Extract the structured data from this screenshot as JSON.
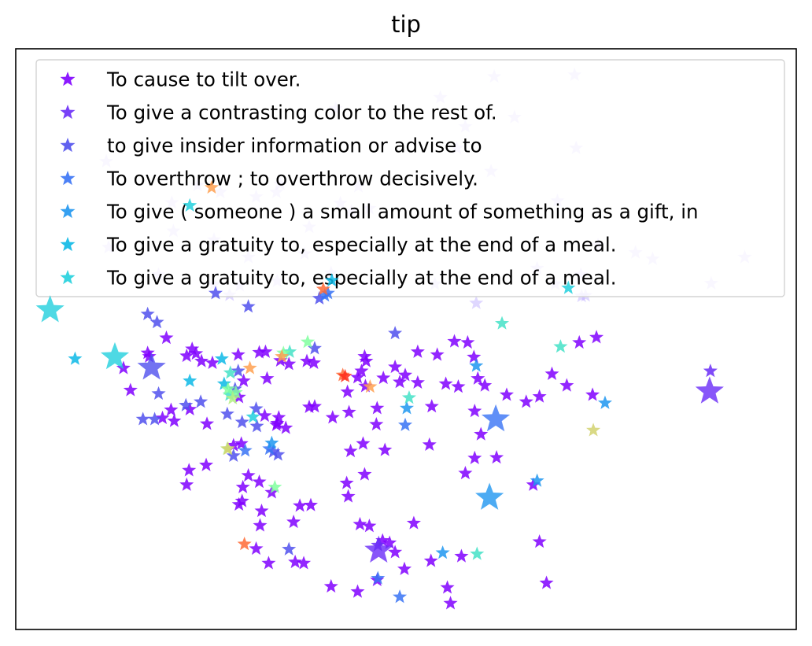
{
  "chart_data": {
    "type": "scatter",
    "title": "tip",
    "xlabel": "",
    "ylabel": "",
    "grid": false,
    "axis_ticks": false,
    "marker": "star",
    "xlim": [
      0,
      100
    ],
    "ylim": [
      0,
      100
    ],
    "legend": {
      "placement": "top",
      "entries": [
        {
          "label": "To cause to tilt over.",
          "color": "#8000ff"
        },
        {
          "label": "To give a contrasting color to the rest of.",
          "color": "#6a2cf7"
        },
        {
          "label": "to give insider information or advise to",
          "color": "#5050ed"
        },
        {
          "label": "To overthrow ; to overthrow decisively.",
          "color": "#3873f5"
        },
        {
          "label": "To give ( someone ) a small amount of something as a gift, in",
          "color": "#1f96f0"
        },
        {
          "label": "To give a gratuity to, especially at the end of a meal.",
          "color": "#0cb8e6"
        },
        {
          "label": "To give a gratuity to, especially at the end of a meal.",
          "color": "#22d0dd"
        }
      ]
    },
    "series": [
      {
        "color": "#8000ff",
        "alpha": 0.85,
        "size": "small",
        "points": [
          [
            28.5,
            47.3
          ],
          [
            31.2,
            47.7
          ],
          [
            32.0,
            47.8
          ],
          [
            33.9,
            46.3
          ],
          [
            37.3,
            46.2
          ],
          [
            44.7,
            47.0
          ],
          [
            44.9,
            46.2
          ],
          [
            51.5,
            47.8
          ],
          [
            54.0,
            47.3
          ],
          [
            57.9,
            49.4
          ],
          [
            58.7,
            46.9
          ],
          [
            56.2,
            49.6
          ],
          [
            19.3,
            50.2
          ],
          [
            16.9,
            47.6
          ],
          [
            17.1,
            47.0
          ],
          [
            13.8,
            45.0
          ],
          [
            21.9,
            47.1
          ],
          [
            22.6,
            48.3
          ],
          [
            23.1,
            47.5
          ],
          [
            23.8,
            46.2
          ],
          [
            14.7,
            41.2
          ],
          [
            18.8,
            36.4
          ],
          [
            19.9,
            37.8
          ],
          [
            22.3,
            37.9
          ],
          [
            20.3,
            35.9
          ],
          [
            24.5,
            35.4
          ],
          [
            27.9,
            31.7
          ],
          [
            28.9,
            32.0
          ],
          [
            31.9,
            36.8
          ],
          [
            33.4,
            35.2
          ],
          [
            33.7,
            36.5
          ],
          [
            33.5,
            35.5
          ],
          [
            34.6,
            34.7
          ],
          [
            37.6,
            38.3
          ],
          [
            38.3,
            38.4
          ],
          [
            40.6,
            36.5
          ],
          [
            42.5,
            40.9
          ],
          [
            42.7,
            37.4
          ],
          [
            43.8,
            43.4
          ],
          [
            46.3,
            38.1
          ],
          [
            47.1,
            43.3
          ],
          [
            48.6,
            45.2
          ],
          [
            49.9,
            43.8
          ],
          [
            49.2,
            42.6
          ],
          [
            51.5,
            42.5
          ],
          [
            53.3,
            38.4
          ],
          [
            55.1,
            42.3
          ],
          [
            56.7,
            41.8
          ],
          [
            58.8,
            37.6
          ],
          [
            60.1,
            42.0
          ],
          [
            59.2,
            43.2
          ],
          [
            62.9,
            40.4
          ],
          [
            65.4,
            39.2
          ],
          [
            67.1,
            40.1
          ],
          [
            70.6,
            42.0
          ],
          [
            73.9,
            40.4
          ],
          [
            68.7,
            44.0
          ],
          [
            74.4,
            50.3
          ],
          [
            72.2,
            49.4
          ],
          [
            59.6,
            33.6
          ],
          [
            58.8,
            29.5
          ],
          [
            57.6,
            26.9
          ],
          [
            53.0,
            31.8
          ],
          [
            47.3,
            30.9
          ],
          [
            42.9,
            30.7
          ],
          [
            42.4,
            25.2
          ],
          [
            42.6,
            22.9
          ],
          [
            36.4,
            21.3
          ],
          [
            35.6,
            18.5
          ],
          [
            32.8,
            23.6
          ],
          [
            29.8,
            26.5
          ],
          [
            29.0,
            22.1
          ],
          [
            28.6,
            21.5
          ],
          [
            24.4,
            28.3
          ],
          [
            22.2,
            27.4
          ],
          [
            21.9,
            24.9
          ],
          [
            29.1,
            24.5
          ],
          [
            31.2,
            25.4
          ],
          [
            31.5,
            20.4
          ],
          [
            31.3,
            17.9
          ],
          [
            30.8,
            13.9
          ],
          [
            32.4,
            11.4
          ],
          [
            35.8,
            11.6
          ],
          [
            36.9,
            11.4
          ],
          [
            37.8,
            21.4
          ],
          [
            40.4,
            7.4
          ],
          [
            43.8,
            6.5
          ],
          [
            46.3,
            8.5
          ],
          [
            49.8,
            10.4
          ],
          [
            48.6,
            13.3
          ],
          [
            47.0,
            15.3
          ],
          [
            45.3,
            17.8
          ],
          [
            44.1,
            18.1
          ],
          [
            47.9,
            14.9
          ],
          [
            51.0,
            18.3
          ],
          [
            53.2,
            11.8
          ],
          [
            55.3,
            7.2
          ],
          [
            57.1,
            12.6
          ],
          [
            55.7,
            4.5
          ],
          [
            61.6,
            29.6
          ],
          [
            66.3,
            24.9
          ],
          [
            67.1,
            15.1
          ],
          [
            68.0,
            8.0
          ],
          [
            44.7,
            26.7
          ],
          [
            44.5,
            32.0
          ],
          [
            46.2,
            35.3
          ],
          [
            44.8,
            41.9
          ],
          [
            44.3,
            44.5
          ],
          [
            38.2,
            45.9
          ],
          [
            35.0,
            45.7
          ],
          [
            32.2,
            43.2
          ],
          [
            29.2,
            42.8
          ],
          [
            28.6,
            40.0
          ],
          [
            25.2,
            45.9
          ]
        ]
      },
      {
        "color": "#6a2cf7",
        "alpha": 0.85,
        "size": "small",
        "points": [
          [
            46.4,
            14.5
          ],
          [
            89.0,
            44.5
          ]
        ]
      },
      {
        "color": "#6a2cf7",
        "alpha": 0.8,
        "size": "large",
        "points": [
          [
            46.5,
            13.6
          ],
          [
            88.9,
            41.0
          ]
        ]
      },
      {
        "color": "#5050ed",
        "alpha": 0.85,
        "size": "small",
        "points": [
          [
            16.9,
            54.3
          ],
          [
            25.6,
            57.9
          ],
          [
            23.7,
            39.2
          ],
          [
            27.1,
            37.1
          ],
          [
            28.5,
            44.5
          ],
          [
            29.0,
            35.7
          ],
          [
            30.9,
            35.0
          ],
          [
            33.0,
            30.6
          ],
          [
            33.6,
            30.1
          ],
          [
            27.9,
            29.9
          ],
          [
            21.8,
            38.6
          ],
          [
            18.3,
            40.6
          ],
          [
            17.8,
            36.2
          ],
          [
            16.3,
            36.2
          ],
          [
            18.1,
            52.9
          ],
          [
            35.0,
            13.8
          ],
          [
            48.6,
            51.0
          ],
          [
            38.3,
            48.4
          ],
          [
            29.8,
            55.6
          ],
          [
            28.1,
            41.4
          ],
          [
            30.8,
            38.0
          ],
          [
            38.9,
            57.0
          ]
        ]
      },
      {
        "color": "#5050ed",
        "alpha": 0.8,
        "size": "large",
        "points": [
          [
            17.4,
            45.1
          ]
        ]
      },
      {
        "color": "#3873f5",
        "alpha": 0.85,
        "size": "small",
        "points": [
          [
            49.9,
            35.2
          ],
          [
            29.4,
            30.8
          ],
          [
            32.5,
            31.1
          ],
          [
            39.6,
            57.5
          ],
          [
            40.0,
            57.9
          ],
          [
            46.4,
            8.8
          ],
          [
            49.2,
            5.6
          ]
        ]
      },
      {
        "color": "#3873f5",
        "alpha": 0.8,
        "size": "large",
        "points": [
          [
            61.5,
            36.2
          ]
        ]
      },
      {
        "color": "#1f96f0",
        "alpha": 0.85,
        "size": "small",
        "points": [
          [
            59.0,
            45.4
          ],
          [
            66.8,
            25.6
          ],
          [
            54.7,
            13.2
          ],
          [
            75.5,
            39.0
          ],
          [
            32.8,
            32.1
          ],
          [
            50.1,
            38.1
          ]
        ]
      },
      {
        "color": "#1f96f0",
        "alpha": 0.8,
        "size": "large",
        "points": [
          [
            60.7,
            22.7
          ]
        ]
      },
      {
        "color": "#0cb8e6",
        "alpha": 0.85,
        "size": "small",
        "points": [
          [
            7.6,
            46.6
          ],
          [
            26.4,
            46.6
          ],
          [
            26.7,
            42.3
          ],
          [
            22.3,
            42.8
          ],
          [
            40.5,
            60.1
          ]
        ]
      },
      {
        "color": "#22d0dd",
        "alpha": 0.8,
        "size": "large",
        "points": [
          [
            4.4,
            55.0
          ],
          [
            12.7,
            46.9
          ]
        ]
      },
      {
        "color": "#22d0dd",
        "alpha": 0.85,
        "size": "small",
        "points": [
          [
            30.4,
            36.6
          ],
          [
            70.8,
            58.8
          ],
          [
            22.3,
            73.0
          ]
        ]
      },
      {
        "color": "#44e2c7",
        "alpha": 0.85,
        "size": "small",
        "points": [
          [
            59.1,
            13.0
          ],
          [
            62.3,
            52.7
          ],
          [
            50.4,
            39.9
          ],
          [
            35.1,
            47.8
          ],
          [
            69.8,
            48.7
          ],
          [
            27.5,
            44.2
          ],
          [
            27.4,
            40.4
          ]
        ]
      },
      {
        "color": "#80ff9f",
        "alpha": 0.85,
        "size": "small",
        "points": [
          [
            37.4,
            49.5
          ],
          [
            33.2,
            24.5
          ],
          [
            28.2,
            40.8
          ],
          [
            34.3,
            47.6
          ],
          [
            27.2,
            41.4
          ]
        ]
      },
      {
        "color": "#b4f082",
        "alpha": 0.85,
        "size": "small",
        "points": [
          [
            27.8,
            39.8
          ],
          [
            27.1,
            31.1
          ]
        ]
      },
      {
        "color": "#d2d270",
        "alpha": 0.85,
        "size": "small",
        "points": [
          [
            27.2,
            31.1
          ],
          [
            74.0,
            34.3
          ]
        ]
      },
      {
        "color": "#ffa050",
        "alpha": 0.85,
        "size": "small",
        "points": [
          [
            45.4,
            41.8
          ],
          [
            34.1,
            47.0
          ],
          [
            30.0,
            45.0
          ],
          [
            25.1,
            76.1
          ]
        ]
      },
      {
        "color": "#ff6a35",
        "alpha": 0.85,
        "size": "small",
        "points": [
          [
            29.3,
            14.7
          ],
          [
            41.9,
            43.8
          ],
          [
            39.4,
            58.6
          ]
        ]
      },
      {
        "color": "#ff2b1a",
        "alpha": 0.85,
        "size": "small",
        "points": [
          [
            42.2,
            43.6
          ]
        ]
      }
    ],
    "faded_points_behind_legend": {
      "color": "#b9a6ff",
      "alpha": 0.45,
      "points": [
        [
          61.3,
          95.2
        ],
        [
          71.6,
          95.5
        ],
        [
          54.4,
          91.6
        ],
        [
          41.0,
          89.7
        ],
        [
          57.6,
          86.6
        ],
        [
          63.9,
          88.2
        ],
        [
          11.6,
          80.6
        ],
        [
          23.3,
          76.5
        ],
        [
          26.2,
          75.3
        ],
        [
          30.8,
          74.5
        ],
        [
          33.4,
          75.3
        ],
        [
          43.9,
          76.3
        ],
        [
          56.5,
          82.9
        ],
        [
          60.9,
          78.9
        ],
        [
          71.8,
          82.9
        ],
        [
          20.0,
          73.5
        ],
        [
          41.6,
          73.4
        ],
        [
          37.6,
          69.3
        ],
        [
          69.4,
          73.8
        ],
        [
          33.9,
          76.7
        ],
        [
          45.3,
          72.5
        ],
        [
          43.0,
          72.0
        ],
        [
          74.6,
          66.2
        ],
        [
          79.4,
          64.9
        ],
        [
          81.6,
          63.8
        ],
        [
          93.4,
          64.1
        ],
        [
          72.4,
          61.1
        ],
        [
          69.1,
          59.5
        ],
        [
          89.1,
          59.6
        ],
        [
          40.4,
          61.4
        ],
        [
          11.9,
          65.8
        ],
        [
          20.2,
          68.6
        ],
        [
          25.4,
          67.1
        ],
        [
          29.8,
          64.1
        ],
        [
          37.0,
          64.7
        ],
        [
          18.3,
          61.1
        ],
        [
          25.4,
          59.4
        ],
        [
          28.7,
          59.2
        ],
        [
          27.4,
          57.6
        ],
        [
          33.5,
          60.0
        ],
        [
          53.7,
          59.5
        ],
        [
          66.8,
          62.2
        ],
        [
          72.5,
          57.4
        ],
        [
          73.0,
          57.5
        ],
        [
          59.0,
          56.2
        ]
      ]
    }
  }
}
